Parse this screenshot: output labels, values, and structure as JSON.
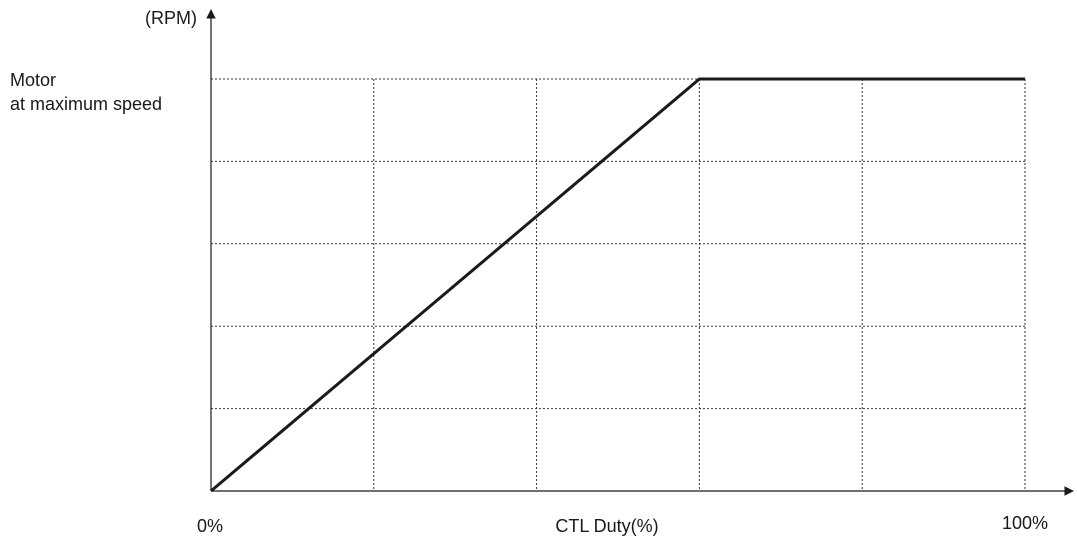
{
  "chart_data": {
    "type": "line",
    "title": "",
    "xlabel": "CTL Duty(%)",
    "ylabel": "(RPM)",
    "xlim": [
      0,
      100
    ],
    "ylim": [
      0,
      100
    ],
    "x_tick_labels": {
      "start": "0%",
      "end": "100%"
    },
    "y_annotation": {
      "line1": "Motor",
      "line2": "at maximum speed"
    },
    "grid": true,
    "grid_style": "dotted",
    "x_grid_values": [
      20,
      40,
      60,
      80,
      100
    ],
    "y_grid_values": [
      20,
      40,
      60,
      80,
      100
    ],
    "series": [
      {
        "x": [
          0,
          60,
          100
        ],
        "y": [
          0,
          100,
          100
        ]
      }
    ],
    "colors": {
      "line": "#1a1a1a",
      "grid": "#333333",
      "text": "#1a1a1a"
    }
  }
}
